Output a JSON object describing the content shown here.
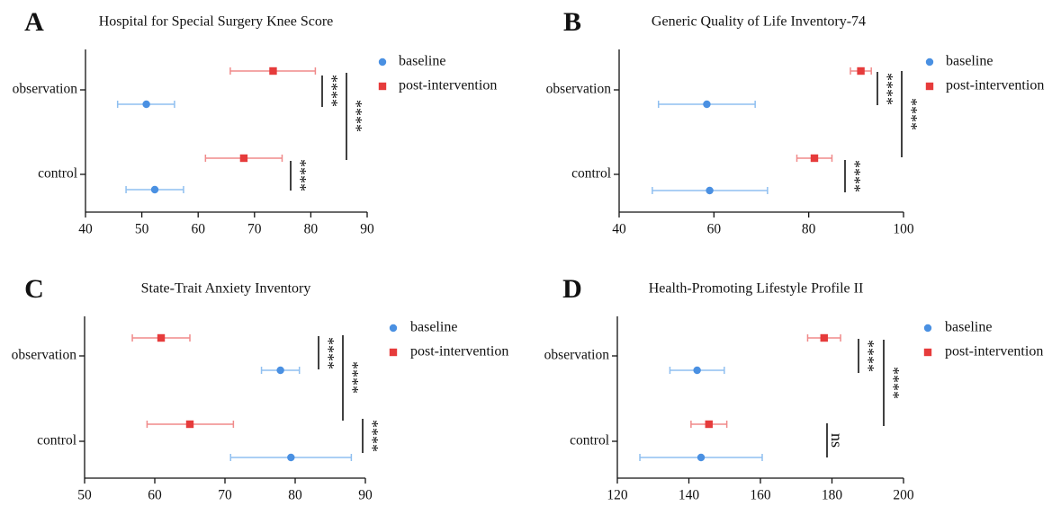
{
  "colors": {
    "baseline": "#4a90e2",
    "post": "#e63b3b",
    "baseline_light": "#8fbff0",
    "post_light": "#f08a8a",
    "axis": "#111111"
  },
  "chart_data": [
    {
      "panel": "A",
      "type": "errorbar",
      "title": "Hospital for Special Surgery Knee Score",
      "categories": [
        "observation",
        "control"
      ],
      "xlim": [
        40,
        90
      ],
      "xticks": [
        "40",
        "50",
        "60",
        "70",
        "80",
        "90"
      ],
      "series": [
        {
          "name": "baseline",
          "marker": "circle",
          "points": [
            {
              "category": "observation",
              "mean": 50.8,
              "low": 45.7,
              "high": 55.8
            },
            {
              "category": "control",
              "mean": 52.3,
              "low": 47.2,
              "high": 57.4
            }
          ]
        },
        {
          "name": "post-intervention",
          "marker": "square",
          "points": [
            {
              "category": "observation",
              "mean": 73.3,
              "low": 65.7,
              "high": 80.8
            },
            {
              "category": "control",
              "mean": 68.1,
              "low": 61.3,
              "high": 74.9
            }
          ]
        }
      ],
      "significance": [
        {
          "label": "****",
          "between": [
            "observation post-intervention",
            "observation baseline"
          ]
        },
        {
          "label": "****",
          "between": [
            "control post-intervention",
            "control baseline"
          ]
        },
        {
          "label": "****",
          "between": [
            "observation post-intervention",
            "control post-intervention"
          ]
        }
      ],
      "legend": {
        "position": "top-right",
        "entries": [
          "baseline",
          "post-intervention"
        ]
      }
    },
    {
      "panel": "B",
      "type": "errorbar",
      "title": "Generic Quality of Life Inventory-74",
      "categories": [
        "observation",
        "control"
      ],
      "xlim": [
        40,
        100
      ],
      "xticks": [
        "40",
        "60",
        "80",
        "100"
      ],
      "series": [
        {
          "name": "baseline",
          "marker": "circle",
          "points": [
            {
              "category": "observation",
              "mean": 58.5,
              "low": 48.3,
              "high": 68.7
            },
            {
              "category": "control",
              "mean": 59.1,
              "low": 47.0,
              "high": 71.3
            }
          ]
        },
        {
          "name": "post-intervention",
          "marker": "square",
          "points": [
            {
              "category": "observation",
              "mean": 91.0,
              "low": 88.8,
              "high": 93.2
            },
            {
              "category": "control",
              "mean": 81.2,
              "low": 77.5,
              "high": 84.9
            }
          ]
        }
      ],
      "significance": [
        {
          "label": "****",
          "between": [
            "observation post-intervention",
            "observation baseline"
          ]
        },
        {
          "label": "****",
          "between": [
            "control post-intervention",
            "control baseline"
          ]
        },
        {
          "label": "****",
          "between": [
            "observation post-intervention",
            "control post-intervention"
          ]
        }
      ],
      "legend": {
        "position": "top-right",
        "entries": [
          "baseline",
          "post-intervention"
        ]
      }
    },
    {
      "panel": "C",
      "type": "errorbar",
      "title": "State-Trait Anxiety Inventory",
      "categories": [
        "observation",
        "control"
      ],
      "xlim": [
        50,
        90
      ],
      "xticks": [
        "50",
        "60",
        "70",
        "80",
        "90"
      ],
      "series": [
        {
          "name": "baseline",
          "marker": "circle",
          "points": [
            {
              "category": "observation",
              "mean": 77.9,
              "low": 75.2,
              "high": 80.6
            },
            {
              "category": "control",
              "mean": 79.4,
              "low": 70.8,
              "high": 88.0
            }
          ]
        },
        {
          "name": "post-intervention",
          "marker": "square",
          "points": [
            {
              "category": "observation",
              "mean": 60.9,
              "low": 56.8,
              "high": 65.0
            },
            {
              "category": "control",
              "mean": 65.0,
              "low": 58.9,
              "high": 71.2
            }
          ]
        }
      ],
      "significance": [
        {
          "label": "****",
          "between": [
            "observation post-intervention",
            "observation baseline"
          ]
        },
        {
          "label": "****",
          "between": [
            "observation post-intervention",
            "control post-intervention"
          ]
        },
        {
          "label": "****",
          "between": [
            "control post-intervention",
            "control baseline"
          ]
        }
      ],
      "legend": {
        "position": "top-right",
        "entries": [
          "baseline",
          "post-intervention"
        ]
      }
    },
    {
      "panel": "D",
      "type": "errorbar",
      "title": "Health-Promoting Lifestyle Profile II",
      "categories": [
        "observation",
        "control"
      ],
      "xlim": [
        120,
        200
      ],
      "xticks": [
        "120",
        "140",
        "160",
        "180",
        "200"
      ],
      "series": [
        {
          "name": "baseline",
          "marker": "circle",
          "points": [
            {
              "category": "observation",
              "mean": 142.3,
              "low": 134.7,
              "high": 149.9
            },
            {
              "category": "control",
              "mean": 143.4,
              "low": 126.3,
              "high": 160.5
            }
          ]
        },
        {
          "name": "post-intervention",
          "marker": "square",
          "points": [
            {
              "category": "observation",
              "mean": 177.8,
              "low": 173.2,
              "high": 182.4
            },
            {
              "category": "control",
              "mean": 145.6,
              "low": 140.6,
              "high": 150.6
            }
          ]
        }
      ],
      "significance": [
        {
          "label": "****",
          "between": [
            "observation post-intervention",
            "observation baseline"
          ]
        },
        {
          "label": "ns",
          "between": [
            "control post-intervention",
            "control baseline"
          ]
        },
        {
          "label": "****",
          "between": [
            "observation post-intervention",
            "control post-intervention"
          ]
        }
      ],
      "legend": {
        "position": "top-right",
        "entries": [
          "baseline",
          "post-intervention"
        ]
      }
    }
  ]
}
